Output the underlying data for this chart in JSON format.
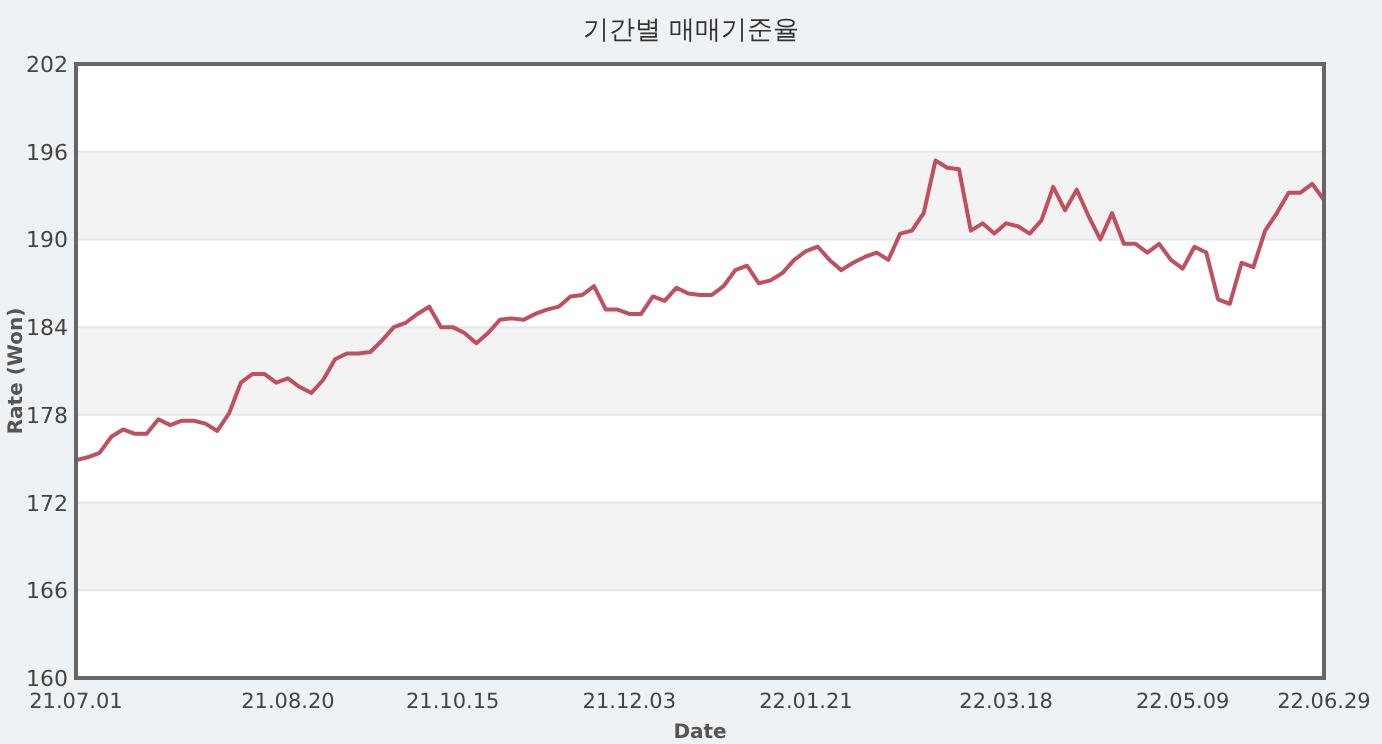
{
  "chart_data": {
    "type": "line",
    "title": "기간별 매매기준율",
    "xlabel": "Date",
    "ylabel": "Rate (Won)",
    "categories": [
      "21.07.01",
      null,
      null,
      null,
      null,
      null,
      null,
      null,
      null,
      null,
      null,
      null,
      null,
      null,
      null,
      null,
      null,
      null,
      "21.08.20",
      null,
      null,
      null,
      null,
      null,
      null,
      null,
      null,
      null,
      null,
      null,
      null,
      null,
      "21.10.15",
      null,
      null,
      null,
      null,
      null,
      null,
      null,
      null,
      null,
      null,
      null,
      null,
      null,
      null,
      "21.12.03",
      null,
      null,
      null,
      null,
      null,
      null,
      null,
      null,
      null,
      null,
      null,
      null,
      null,
      null,
      "22.01.21",
      null,
      null,
      null,
      null,
      null,
      null,
      null,
      null,
      null,
      null,
      null,
      null,
      null,
      null,
      null,
      null,
      "22.03.18",
      null,
      null,
      null,
      null,
      null,
      null,
      null,
      null,
      null,
      null,
      null,
      null,
      null,
      null,
      "22.05.09",
      null,
      null,
      null,
      null,
      null,
      null,
      null,
      null,
      null,
      null,
      null,
      "22.06.29"
    ],
    "series": [
      {
        "color": "#c0505f",
        "values": [
          174.9,
          175.1,
          175.4,
          176.5,
          177.0,
          176.7,
          176.7,
          177.7,
          177.3,
          177.6,
          177.6,
          177.4,
          176.9,
          178.1,
          180.2,
          180.8,
          180.8,
          180.2,
          180.5,
          179.9,
          179.5,
          180.4,
          181.8,
          182.2,
          182.2,
          182.3,
          183.1,
          184.0,
          184.3,
          184.9,
          185.4,
          184.0,
          184.0,
          183.6,
          182.9,
          183.6,
          184.5,
          184.6,
          184.5,
          184.9,
          185.2,
          185.4,
          186.1,
          186.2,
          186.8,
          185.2,
          185.2,
          184.9,
          184.9,
          186.1,
          185.8,
          186.7,
          186.3,
          186.2,
          186.2,
          186.8,
          187.9,
          188.2,
          187.0,
          187.2,
          187.7,
          188.6,
          189.2,
          189.5,
          188.6,
          187.9,
          188.4,
          188.8,
          189.1,
          188.6,
          190.4,
          190.6,
          191.8,
          195.4,
          194.9,
          194.8,
          190.6,
          191.1,
          190.4,
          191.1,
          190.9,
          190.4,
          191.3,
          193.6,
          192.0,
          193.4,
          191.6,
          190.0,
          191.8,
          189.7,
          189.7,
          189.1,
          189.7,
          188.6,
          188.0,
          189.5,
          189.1,
          185.9,
          185.6,
          188.4,
          188.1,
          190.6,
          191.8,
          193.2,
          193.2,
          193.8,
          192.7
        ]
      }
    ],
    "ylim": [
      160,
      202
    ],
    "yticks": [
      160,
      166,
      172,
      178,
      184,
      190,
      196,
      202
    ],
    "grid": "y",
    "marker": "none",
    "line_style": "solid",
    "bands": [
      {
        "axis": "y",
        "from": 166,
        "to": 172,
        "color": "#f3f3f3"
      },
      {
        "axis": "y",
        "from": 178,
        "to": 184,
        "color": "#f3f3f3"
      },
      {
        "axis": "y",
        "from": 190,
        "to": 196,
        "color": "#f3f3f3"
      }
    ]
  }
}
